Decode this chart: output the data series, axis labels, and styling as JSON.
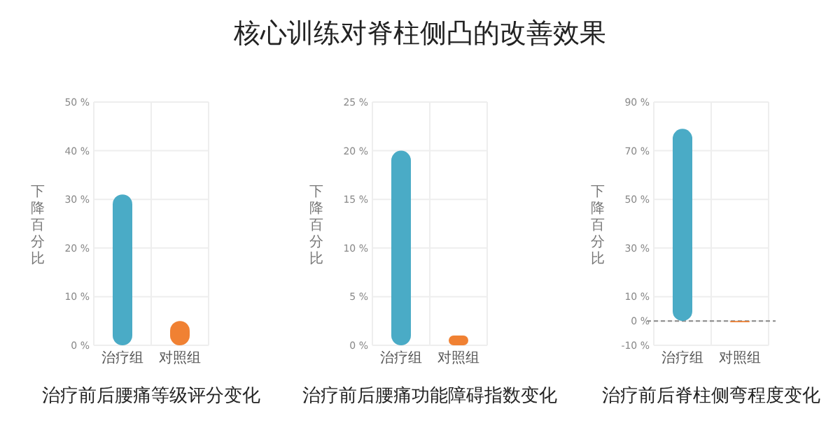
{
  "chart_data": [
    {
      "type": "bar",
      "xlabel": "治疗前后腰痛等级评分变化",
      "ylabel": "下降百分比",
      "categories": [
        "治疗组",
        "对照组"
      ],
      "values": [
        31,
        5
      ],
      "colors": [
        "#4aabc6",
        "#f08133"
      ],
      "ylim": [
        0,
        50
      ],
      "yticks": [
        {
          "value": 0,
          "label": "0 %"
        },
        {
          "value": 10,
          "label": "10 %"
        },
        {
          "value": 20,
          "label": "20 %"
        },
        {
          "value": 30,
          "label": "30 %"
        },
        {
          "value": 40,
          "label": "40 %"
        },
        {
          "value": 50,
          "label": "50 %"
        }
      ],
      "grid": true
    },
    {
      "type": "bar",
      "title": "核心训练对脊柱侧凸的改善效果",
      "xlabel": "治疗前后腰痛功能障碍指数变化",
      "ylabel": "下降百分比",
      "categories": [
        "治疗组",
        "对照组"
      ],
      "values": [
        20,
        1
      ],
      "colors": [
        "#4aabc6",
        "#f08133"
      ],
      "ylim": [
        0,
        25
      ],
      "yticks": [
        {
          "value": 0,
          "label": "0 %"
        },
        {
          "value": 5,
          "label": "5 %"
        },
        {
          "value": 10,
          "label": "10 %"
        },
        {
          "value": 15,
          "label": "15 %"
        },
        {
          "value": 20,
          "label": "20 %"
        },
        {
          "value": 25,
          "label": "25 %"
        }
      ],
      "grid": true
    },
    {
      "type": "bar",
      "xlabel": "治疗前后脊柱侧弯程度变化",
      "ylabel": "下降百分比",
      "categories": [
        "治疗组",
        "对照组"
      ],
      "values": [
        79,
        -0.5
      ],
      "colors": [
        "#4aabc6",
        "#f08133"
      ],
      "ylim": [
        -10,
        90
      ],
      "yticks": [
        {
          "value": -10,
          "label": "-10 %"
        },
        {
          "value": 0,
          "label": "0 %"
        },
        {
          "value": 10,
          "label": "10 %"
        },
        {
          "value": 30,
          "label": "30 %"
        },
        {
          "value": 50,
          "label": "50 %"
        },
        {
          "value": 70,
          "label": "70 %"
        },
        {
          "value": 90,
          "label": "90 %"
        }
      ],
      "grid": true,
      "ref_lines": [
        {
          "axis": "y",
          "value": 0,
          "color": "#888888",
          "line_style": "dashed"
        }
      ]
    }
  ]
}
